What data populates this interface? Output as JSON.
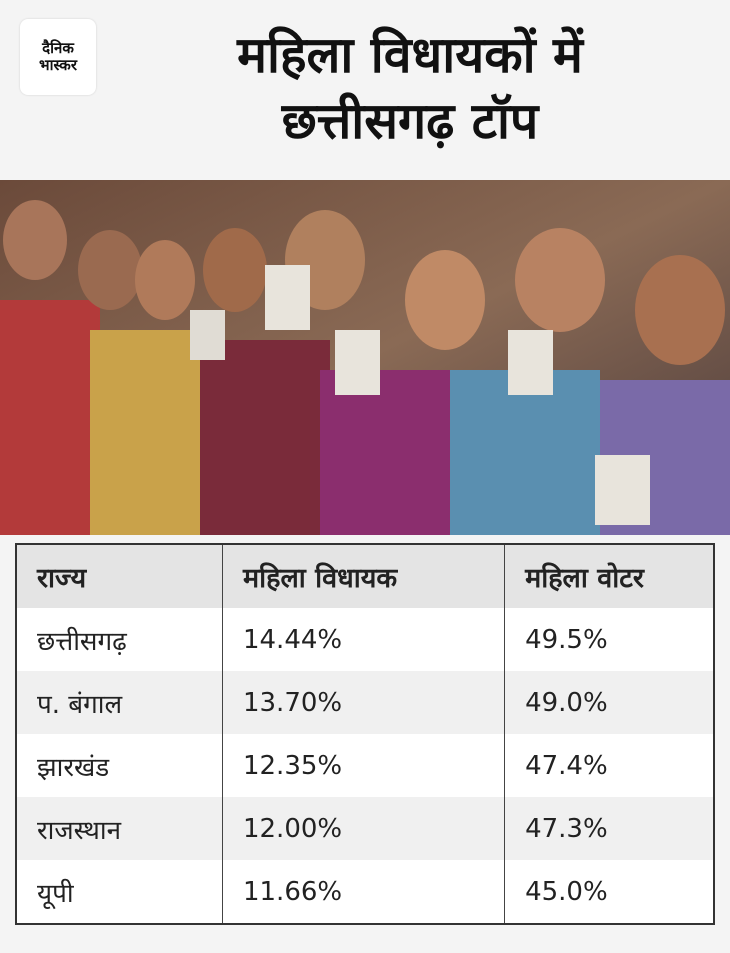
{
  "header": {
    "logo": [
      "दैनिक",
      "भास्कर"
    ],
    "title": [
      "महिला विधायकों में",
      "छत्तीसगढ़ टॉप"
    ]
  },
  "table": {
    "columns": [
      "राज्य",
      "महिला विधायक",
      "महिला वोटर"
    ],
    "rows": [
      [
        "छत्तीसगढ़",
        "14.44%",
        "49.5%"
      ],
      [
        "प. बंगाल",
        "13.70%",
        "49.0%"
      ],
      [
        "झारखंड",
        "12.35%",
        "47.4%"
      ],
      [
        "राजस्थान",
        "12.00%",
        "47.3%"
      ],
      [
        "यूपी",
        "11.66%",
        "45.0%"
      ]
    ]
  }
}
